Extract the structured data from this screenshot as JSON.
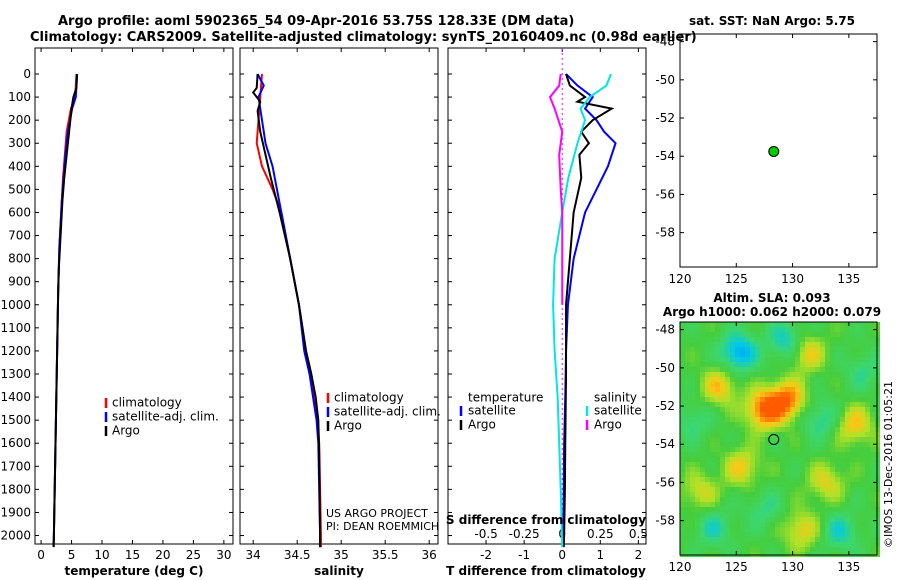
{
  "title_line1": "Argo profile: aoml 5902365_54 09-Apr-2016 53.75S 128.33E (DM data)",
  "title_line2": "Climatology: CARS2009. Satellite-adjusted climatology: synTS_20160409.nc (0.98d earlier)",
  "watermark": "©IMOS 13-Dec-2016 01:05:21",
  "colors": {
    "climatology": "#ff0000",
    "satellite": "#0000ff",
    "argo": "#000000",
    "satellite_s": "#00e5e5",
    "argo_s": "#ff00ff"
  },
  "chart_data": [
    {
      "type": "line",
      "id": "temperature",
      "xlabel": "temperature (deg C)",
      "ylabel": "",
      "xlim": [
        -1,
        31.5
      ],
      "ylim": [
        2080,
        0
      ],
      "xticks": [
        0,
        5,
        10,
        15,
        20,
        25,
        30
      ],
      "yticks": [
        0,
        100,
        200,
        300,
        400,
        500,
        600,
        700,
        800,
        900,
        1000,
        1100,
        1200,
        1300,
        1400,
        1500,
        1600,
        1700,
        1800,
        1900,
        2000
      ],
      "legend": [
        {
          "label": "climatology",
          "color": "#ff0000"
        },
        {
          "label": "satellite-adj. clim.",
          "color": "#0000ff"
        },
        {
          "label": "Argo",
          "color": "#000000"
        }
      ],
      "series": [
        {
          "name": "climatology",
          "color": "#ff0000",
          "x": [
            5.8,
            5.7,
            5.6,
            4.9,
            4.2,
            3.9,
            3.6,
            3.4,
            3.2,
            3.0,
            2.9,
            2.8,
            2.7,
            2.6,
            2.5,
            2.4,
            2.3,
            2.2,
            2.1,
            2.05
          ],
          "y": [
            0,
            50,
            100,
            150,
            250,
            350,
            450,
            550,
            650,
            750,
            850,
            950,
            1100,
            1250,
            1400,
            1550,
            1700,
            1850,
            2000,
            2050
          ]
        },
        {
          "name": "satellite-adj. clim.",
          "color": "#0000ff",
          "x": [
            5.9,
            5.8,
            5.7,
            5.1,
            4.4,
            4.0,
            3.7,
            3.4,
            3.2,
            3.0,
            2.9,
            2.8,
            2.7,
            2.6,
            2.5,
            2.4,
            2.3,
            2.2,
            2.1,
            2.05
          ],
          "y": [
            0,
            50,
            100,
            150,
            250,
            350,
            450,
            550,
            650,
            750,
            850,
            950,
            1100,
            1250,
            1400,
            1550,
            1700,
            1850,
            2000,
            2050
          ]
        },
        {
          "name": "Argo",
          "color": "#000000",
          "x": [
            5.9,
            5.8,
            5.3,
            5.0,
            4.6,
            4.2,
            3.8,
            3.5,
            3.3,
            3.1,
            2.9,
            2.8,
            2.7,
            2.6,
            2.5,
            2.4,
            2.3,
            2.2,
            2.1,
            2.05
          ],
          "y": [
            0,
            60,
            100,
            150,
            250,
            350,
            450,
            550,
            650,
            750,
            850,
            950,
            1100,
            1250,
            1400,
            1550,
            1700,
            1850,
            2000,
            2050
          ]
        }
      ]
    },
    {
      "type": "line",
      "id": "salinity",
      "xlabel": "salinity",
      "ylabel": "",
      "xlim": [
        33.85,
        36.1
      ],
      "ylim": [
        2080,
        0
      ],
      "xticks": [
        34,
        34.5,
        35,
        35.5,
        36
      ],
      "yticks": [],
      "legend": [
        {
          "label": "climatology",
          "color": "#ff0000"
        },
        {
          "label": "satellite-adj. clim.",
          "color": "#0000ff"
        },
        {
          "label": "Argo",
          "color": "#000000"
        }
      ],
      "annotations": [
        "US ARGO PROJECT",
        "PI: DEAN ROEMMICH"
      ],
      "series": [
        {
          "name": "climatology",
          "color": "#ff0000",
          "x": [
            34.1,
            34.08,
            34.06,
            34.04,
            34.1,
            34.22,
            34.32,
            34.42,
            34.52,
            34.6,
            34.66,
            34.7,
            34.73,
            34.75,
            34.76,
            34.77,
            34.77
          ],
          "y": [
            0,
            100,
            200,
            300,
            400,
            500,
            600,
            800,
            1000,
            1200,
            1300,
            1400,
            1500,
            1600,
            1800,
            2000,
            2050
          ]
        },
        {
          "name": "satellite-adj. clim.",
          "color": "#0000ff",
          "x": [
            34.05,
            34.12,
            34.06,
            34.1,
            34.14,
            34.22,
            34.32,
            34.42,
            34.52,
            34.58,
            34.64,
            34.68,
            34.72,
            34.74,
            34.75,
            34.76,
            34.76
          ],
          "y": [
            0,
            50,
            100,
            200,
            300,
            400,
            600,
            800,
            1000,
            1200,
            1300,
            1400,
            1500,
            1600,
            1800,
            2000,
            2050
          ]
        },
        {
          "name": "Argo",
          "color": "#000000",
          "x": [
            34.05,
            34.04,
            34.0,
            34.08,
            34.05,
            34.08,
            34.14,
            34.2,
            34.3,
            34.42,
            34.52,
            34.6,
            34.66,
            34.71,
            34.74,
            34.75,
            34.76,
            34.76
          ],
          "y": [
            0,
            60,
            80,
            120,
            160,
            250,
            350,
            450,
            600,
            800,
            1000,
            1200,
            1300,
            1400,
            1500,
            1650,
            2000,
            2050
          ]
        }
      ]
    },
    {
      "type": "line",
      "id": "differences",
      "xlabel": "T difference from climatology",
      "xlabel_top": "S difference from climatology",
      "xlim": [
        -3,
        2.2
      ],
      "ylim": [
        2080,
        0
      ],
      "xticks": [
        -2,
        -1,
        0,
        1,
        2
      ],
      "xticks_s": [
        "-0.5",
        "-0.25",
        "0",
        "0.25",
        "0.5"
      ],
      "xticks_s_values": [
        -0.5,
        -0.25,
        0,
        0.25,
        0.5
      ],
      "yticks": [],
      "legend_groups": [
        {
          "heading": "temperature",
          "items": [
            {
              "label": "satellite",
              "color": "#0000ff"
            },
            {
              "label": "Argo",
              "color": "#000000"
            }
          ]
        },
        {
          "heading": "salinity",
          "items": [
            {
              "label": "satellite",
              "color": "#00e5e5"
            },
            {
              "label": "Argo",
              "color": "#ff00ff"
            }
          ]
        }
      ],
      "series": [
        {
          "name": "T satellite",
          "color": "#0000ff",
          "x": [
            0.1,
            0.4,
            0.8,
            0.6,
            0.9,
            1.1,
            1.4,
            1.2,
            0.9,
            0.6,
            0.3,
            0.15,
            0.1,
            0.08,
            0.05,
            0.04,
            0.03,
            0.02
          ],
          "y": [
            0,
            50,
            100,
            150,
            200,
            250,
            300,
            400,
            500,
            600,
            800,
            1000,
            1200,
            1400,
            1600,
            1800,
            2000,
            2050
          ]
        },
        {
          "name": "T Argo",
          "color": "#000000",
          "x": [
            0.1,
            0.2,
            0.6,
            0.4,
            1.3,
            0.8,
            0.5,
            0.7,
            0.45,
            0.5,
            0.3,
            0.2,
            0.1,
            0.1,
            0.08,
            0.07,
            0.05,
            0.04
          ],
          "y": [
            0,
            50,
            100,
            120,
            150,
            200,
            250,
            300,
            350,
            450,
            600,
            800,
            1000,
            1300,
            1600,
            1800,
            2000,
            2050
          ]
        },
        {
          "name": "S satellite",
          "color": "#00e5e5",
          "x": [
            0.32,
            0.29,
            0.18,
            0.12,
            0.15,
            0.1,
            0.04,
            0.0,
            -0.05,
            -0.06,
            -0.05,
            -0.03,
            -0.02,
            -0.01,
            0.0
          ],
          "y": [
            0,
            50,
            100,
            150,
            200,
            300,
            450,
            600,
            800,
            1000,
            1200,
            1400,
            1600,
            1800,
            2050
          ]
        },
        {
          "name": "S Argo",
          "color": "#ff00ff",
          "x": [
            -0.01,
            -0.02,
            -0.08,
            -0.05,
            0.0,
            -0.02,
            -0.01,
            0.0,
            0.0,
            0.0
          ],
          "y": [
            0,
            50,
            100,
            150,
            250,
            350,
            500,
            600,
            800,
            1000
          ]
        }
      ]
    },
    {
      "type": "scatter",
      "id": "sst_map",
      "title": "sat. SST: NaN Argo: 5.75",
      "xlim": [
        120,
        137.5
      ],
      "ylim": [
        -59.8,
        -47.6
      ],
      "xticks": [
        120,
        125,
        130,
        135
      ],
      "yticks": [
        -48,
        -50,
        -52,
        -54,
        -56,
        -58
      ],
      "points": [
        {
          "x": 128.33,
          "y": -53.75,
          "color": "#00cc00"
        }
      ]
    },
    {
      "type": "heatmap",
      "id": "sla_map",
      "title_line1": "Altim. SLA: 0.093",
      "title_line2": "Argo h1000: 0.062 h2000: 0.079",
      "xlim": [
        120,
        137.5
      ],
      "ylim": [
        -59.8,
        -47.6
      ],
      "xticks": [
        120,
        125,
        130,
        135
      ],
      "yticks": [
        -48,
        -50,
        -52,
        -54,
        -56,
        -58
      ],
      "points": [
        {
          "x": 128.33,
          "y": -53.75,
          "color": "#000000"
        }
      ],
      "blobs": [
        {
          "x": 123.5,
          "y": -51.0,
          "v": 0.55
        },
        {
          "x": 127.5,
          "y": -52.2,
          "v": 0.9
        },
        {
          "x": 129.5,
          "y": -51.7,
          "v": 0.85
        },
        {
          "x": 131.2,
          "y": -49.2,
          "v": 0.55
        },
        {
          "x": 125.5,
          "y": -55.2,
          "v": 0.5
        },
        {
          "x": 133.0,
          "y": -56.0,
          "v": 0.45
        },
        {
          "x": 135.5,
          "y": -53.0,
          "v": 0.55
        },
        {
          "x": 121.8,
          "y": -56.5,
          "v": 0.4
        },
        {
          "x": 130.8,
          "y": -58.5,
          "v": 0.5
        },
        {
          "x": 125.2,
          "y": -49.2,
          "v": -0.75
        },
        {
          "x": 129.5,
          "y": -48.6,
          "v": -0.55
        },
        {
          "x": 132.5,
          "y": -52.7,
          "v": -0.4
        },
        {
          "x": 123.0,
          "y": -58.4,
          "v": -0.4
        },
        {
          "x": 134.2,
          "y": -58.6,
          "v": -0.45
        },
        {
          "x": 121.2,
          "y": -52.8,
          "v": -0.3
        },
        {
          "x": 136.3,
          "y": -50.2,
          "v": -0.3
        },
        {
          "x": 127.5,
          "y": -57.4,
          "v": -0.3
        }
      ]
    }
  ]
}
